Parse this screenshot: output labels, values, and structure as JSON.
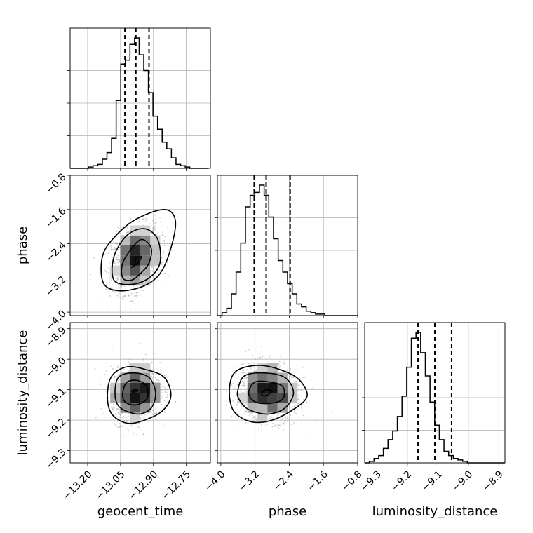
{
  "chart_data": {
    "type": "corner",
    "parameters": [
      "geocent_time",
      "phase",
      "luminosity_distance"
    ],
    "ranges": {
      "geocent_time": [
        -13.28,
        -12.64
      ],
      "phase": [
        -4.08,
        -0.8
      ],
      "luminosity_distance": [
        -9.34,
        -8.88
      ]
    },
    "ticks": {
      "geocent_time": [
        -13.2,
        -13.05,
        -12.9,
        -12.75
      ],
      "phase": [
        -4.0,
        -3.2,
        -2.4,
        -1.6,
        -0.8
      ],
      "luminosity_distance": [
        -9.3,
        -9.2,
        -9.1,
        -9.0,
        -8.9
      ]
    },
    "tick_labels": {
      "geocent_time": [
        "−13.20",
        "−13.05",
        "−12.90",
        "−12.75"
      ],
      "phase": [
        "−4.0",
        "−3.2",
        "−2.4",
        "−1.6",
        "−0.8"
      ],
      "luminosity_distance": [
        "−9.3",
        "−9.2",
        "−9.1",
        "−9.0",
        "−8.9"
      ]
    },
    "quantiles": {
      "geocent_time": [
        -13.03,
        -12.98,
        -12.92
      ],
      "phase": [
        -3.22,
        -2.94,
        -2.38
      ],
      "luminosity_distance": [
        -9.165,
        -9.11,
        -9.055
      ]
    },
    "hist": {
      "geocent_time": {
        "edges_start": -13.28,
        "bin_width": 0.021,
        "counts": [
          0,
          0,
          0,
          0,
          1,
          2,
          3,
          7,
          12,
          23,
          52,
          80,
          83,
          95,
          100,
          87,
          75,
          58,
          40,
          30,
          20,
          15,
          8,
          3,
          2,
          1,
          0,
          0,
          0,
          0
        ]
      },
      "phase": {
        "edges_start": -4.08,
        "bin_width": 0.1093,
        "counts": [
          0,
          2,
          5,
          15,
          30,
          50,
          75,
          83,
          85,
          90,
          83,
          68,
          53,
          38,
          30,
          22,
          15,
          8,
          6,
          3,
          2,
          1,
          1,
          0,
          0,
          0,
          0,
          0,
          0,
          0
        ]
      },
      "luminosity_distance": {
        "edges_start": -9.34,
        "bin_width": 0.0153,
        "counts": [
          0,
          1,
          3,
          5,
          10,
          16,
          22,
          32,
          46,
          66,
          86,
          90,
          76,
          60,
          42,
          26,
          16,
          8,
          5,
          3,
          2,
          1,
          0,
          0,
          0,
          0,
          0,
          0,
          0,
          0
        ]
      }
    },
    "pairs": [
      {
        "x": "geocent_time",
        "y": "phase",
        "center": [
          -12.98,
          -2.75
        ],
        "sigma": [
          0.055,
          0.38
        ],
        "rho": 0.3,
        "contours": [
          [
            [
              -13.0,
              -2.95
            ],
            [
              -12.97,
              -2.85
            ],
            [
              -12.955,
              -2.7
            ],
            [
              -12.98,
              -2.75
            ],
            [
              -12.985,
              -2.9
            ]
          ],
          [
            [
              -13.04,
              -3.2
            ],
            [
              -13.04,
              -2.85
            ],
            [
              -12.99,
              -2.45
            ],
            [
              -12.95,
              -2.3
            ],
            [
              -12.91,
              -2.5
            ],
            [
              -12.92,
              -2.85
            ],
            [
              -12.96,
              -3.1
            ],
            [
              -13.0,
              -3.25
            ]
          ],
          [
            [
              -13.08,
              -3.25
            ],
            [
              -13.08,
              -2.7
            ],
            [
              -13.02,
              -2.2
            ],
            [
              -12.94,
              -2.05
            ],
            [
              -12.88,
              -2.3
            ],
            [
              -12.87,
              -2.85
            ],
            [
              -12.92,
              -3.2
            ],
            [
              -13.0,
              -3.35
            ]
          ],
          [
            [
              -13.13,
              -3.3
            ],
            [
              -13.13,
              -2.65
            ],
            [
              -13.06,
              -2.15
            ],
            [
              -12.97,
              -1.8
            ],
            [
              -12.85,
              -1.6
            ],
            [
              -12.8,
              -1.85
            ],
            [
              -12.82,
              -2.5
            ],
            [
              -12.87,
              -3.1
            ],
            [
              -12.95,
              -3.4
            ],
            [
              -13.06,
              -3.5
            ]
          ]
        ]
      },
      {
        "x": "geocent_time",
        "y": "luminosity_distance",
        "center": [
          -12.98,
          -9.11
        ],
        "sigma": [
          0.055,
          0.045
        ],
        "rho": 0.1,
        "contours": [
          [
            [
              -13.0,
              -9.105
            ],
            [
              -12.985,
              -9.1
            ],
            [
              -12.97,
              -9.103
            ],
            [
              -12.99,
              -9.108
            ]
          ],
          [
            [
              -13.04,
              -9.11
            ],
            [
              -13.02,
              -9.075
            ],
            [
              -12.97,
              -9.07
            ],
            [
              -12.93,
              -9.09
            ],
            [
              -12.93,
              -9.13
            ],
            [
              -12.98,
              -9.15
            ],
            [
              -13.03,
              -9.14
            ]
          ],
          [
            [
              -13.075,
              -9.12
            ],
            [
              -13.06,
              -9.06
            ],
            [
              -12.99,
              -9.045
            ],
            [
              -12.92,
              -9.06
            ],
            [
              -12.89,
              -9.11
            ],
            [
              -12.91,
              -9.16
            ],
            [
              -12.97,
              -9.18
            ],
            [
              -13.05,
              -9.16
            ]
          ],
          [
            [
              -13.11,
              -9.12
            ],
            [
              -13.09,
              -9.055
            ],
            [
              -13.02,
              -9.025
            ],
            [
              -12.93,
              -9.035
            ],
            [
              -12.85,
              -9.06
            ],
            [
              -12.82,
              -9.12
            ],
            [
              -12.86,
              -9.17
            ],
            [
              -12.94,
              -9.2
            ],
            [
              -13.02,
              -9.21
            ],
            [
              -13.09,
              -9.18
            ]
          ]
        ]
      },
      {
        "x": "phase",
        "y": "luminosity_distance",
        "center": [
          -2.9,
          -9.11
        ],
        "sigma": [
          0.35,
          0.045
        ],
        "rho": -0.1,
        "contours": [
          [
            [
              -3.05,
              -9.115
            ],
            [
              -2.95,
              -9.1
            ],
            [
              -2.8,
              -9.105
            ],
            [
              -2.95,
              -9.12
            ]
          ],
          [
            [
              -3.35,
              -9.11
            ],
            [
              -3.2,
              -9.075
            ],
            [
              -2.85,
              -9.075
            ],
            [
              -2.55,
              -9.09
            ],
            [
              -2.55,
              -9.13
            ],
            [
              -2.85,
              -9.145
            ],
            [
              -3.2,
              -9.14
            ]
          ],
          [
            [
              -3.6,
              -9.1
            ],
            [
              -3.45,
              -9.055
            ],
            [
              -3.0,
              -9.045
            ],
            [
              -2.5,
              -9.06
            ],
            [
              -2.3,
              -9.11
            ],
            [
              -2.5,
              -9.16
            ],
            [
              -2.9,
              -9.18
            ],
            [
              -3.35,
              -9.165
            ],
            [
              -3.58,
              -9.13
            ]
          ],
          [
            [
              -3.8,
              -9.1
            ],
            [
              -3.65,
              -9.04
            ],
            [
              -3.1,
              -9.02
            ],
            [
              -2.5,
              -9.04
            ],
            [
              -2.15,
              -9.07
            ],
            [
              -1.98,
              -9.12
            ],
            [
              -2.25,
              -9.16
            ],
            [
              -2.8,
              -9.2
            ],
            [
              -3.3,
              -9.205
            ],
            [
              -3.7,
              -9.17
            ]
          ]
        ]
      }
    ],
    "grid": true
  }
}
